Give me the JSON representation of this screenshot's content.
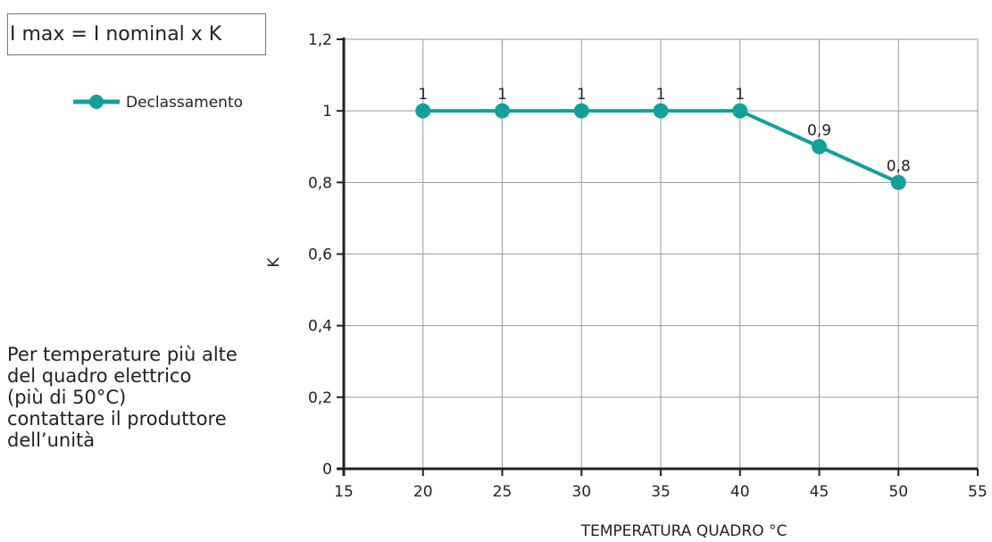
{
  "formula": "I max = I nominal x K",
  "note_lines": [
    "Per temperature più alte",
    "del quadro elettrico",
    "(più di 50°C)",
    "contattare il produttore",
    "dell’unità"
  ],
  "colors": {
    "series": "#14a09a",
    "grid": "#999999",
    "axis": "#222222"
  },
  "chart_data": {
    "type": "line",
    "xlabel": "TEMPERATURA QUADRO °C",
    "ylabel": "K",
    "xlim": [
      15,
      55
    ],
    "ylim": [
      0,
      1.2
    ],
    "x_ticks": [
      15,
      20,
      25,
      30,
      35,
      40,
      45,
      50,
      55
    ],
    "x_tick_labels": [
      "15",
      "20",
      "25",
      "30",
      "35",
      "40",
      "45",
      "50",
      "55"
    ],
    "y_ticks": [
      0,
      0.2,
      0.4,
      0.6,
      0.8,
      1,
      1.2
    ],
    "y_tick_labels": [
      "0",
      "0,2",
      "0,4",
      "0,6",
      "0,8",
      "1",
      "1,2"
    ],
    "grid": true,
    "legend_position": "top-left",
    "series": [
      {
        "name": "Declassamento",
        "x": [
          20,
          25,
          30,
          35,
          40,
          45,
          50
        ],
        "y": [
          1,
          1,
          1,
          1,
          1,
          0.9,
          0.8
        ],
        "labels": [
          "1",
          "1",
          "1",
          "1",
          "1",
          "0,9",
          "0,8"
        ]
      }
    ]
  }
}
